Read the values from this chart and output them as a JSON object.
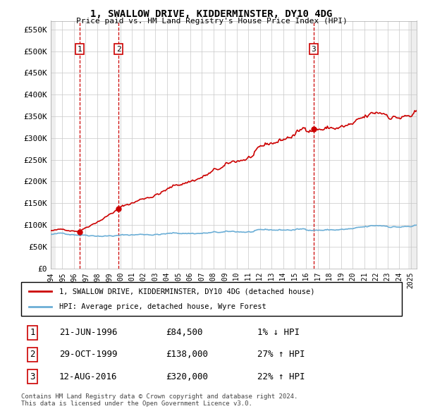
{
  "title": "1, SWALLOW DRIVE, KIDDERMINSTER, DY10 4DG",
  "subtitle": "Price paid vs. HM Land Registry's House Price Index (HPI)",
  "xlim": [
    1994.0,
    2025.5
  ],
  "ylim": [
    0,
    570000
  ],
  "yticks": [
    0,
    50000,
    100000,
    150000,
    200000,
    250000,
    300000,
    350000,
    400000,
    450000,
    500000,
    550000
  ],
  "ytick_labels": [
    "£0",
    "£50K",
    "£100K",
    "£150K",
    "£200K",
    "£250K",
    "£300K",
    "£350K",
    "£400K",
    "£450K",
    "£500K",
    "£550K"
  ],
  "xticks": [
    1994,
    1995,
    1996,
    1997,
    1998,
    1999,
    2000,
    2001,
    2002,
    2003,
    2004,
    2005,
    2006,
    2007,
    2008,
    2009,
    2010,
    2011,
    2012,
    2013,
    2014,
    2015,
    2016,
    2017,
    2018,
    2019,
    2020,
    2021,
    2022,
    2023,
    2024,
    2025
  ],
  "price_paid_dates": [
    1996.47,
    1999.83,
    2016.62
  ],
  "price_paid_values": [
    84500,
    138000,
    320000
  ],
  "transaction_labels": [
    "1",
    "2",
    "3"
  ],
  "vline_dates": [
    1996.47,
    1999.83,
    2016.62
  ],
  "hpi_color": "#6baed6",
  "price_color": "#cc0000",
  "vline_color": "#cc0000",
  "legend_line1": "1, SWALLOW DRIVE, KIDDERMINSTER, DY10 4DG (detached house)",
  "legend_line2": "HPI: Average price, detached house, Wyre Forest",
  "table_rows": [
    [
      "1",
      "21-JUN-1996",
      "£84,500",
      "1% ↓ HPI"
    ],
    [
      "2",
      "29-OCT-1999",
      "£138,000",
      "27% ↑ HPI"
    ],
    [
      "3",
      "12-AUG-2016",
      "£320,000",
      "22% ↑ HPI"
    ]
  ],
  "footnote": "Contains HM Land Registry data © Crown copyright and database right 2024.\nThis data is licensed under the Open Government Licence v3.0.",
  "font_family": "monospace"
}
